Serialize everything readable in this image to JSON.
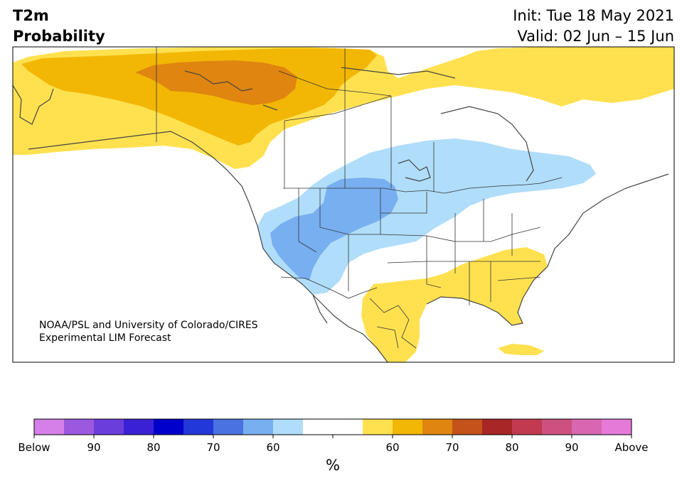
{
  "header": {
    "variable": "T2m",
    "product": "Probability",
    "init": "Init: Tue 18 May 2021",
    "valid": "Valid: 02 Jun – 15 Jun"
  },
  "credit": {
    "line1": "NOAA/PSL and University of Colorado/CIRES",
    "line2": "Experimental LIM Forecast"
  },
  "colorbar": {
    "colors": [
      "#d580e8",
      "#9b59e0",
      "#6b3ddb",
      "#3a22d4",
      "#0000cc",
      "#2338d8",
      "#4a72e0",
      "#78aff0",
      "#b0ddfa",
      "#ffffff",
      "#ffffff",
      "#ffe150",
      "#f2b705",
      "#df8510",
      "#c4521a",
      "#a82626",
      "#c23a50",
      "#cc5080",
      "#d866b0",
      "#e57ad8"
    ],
    "tick_labels": [
      "Below",
      "90",
      "80",
      "70",
      "60",
      "",
      "60",
      "70",
      "80",
      "90",
      "Above"
    ],
    "unit": "%"
  }
}
